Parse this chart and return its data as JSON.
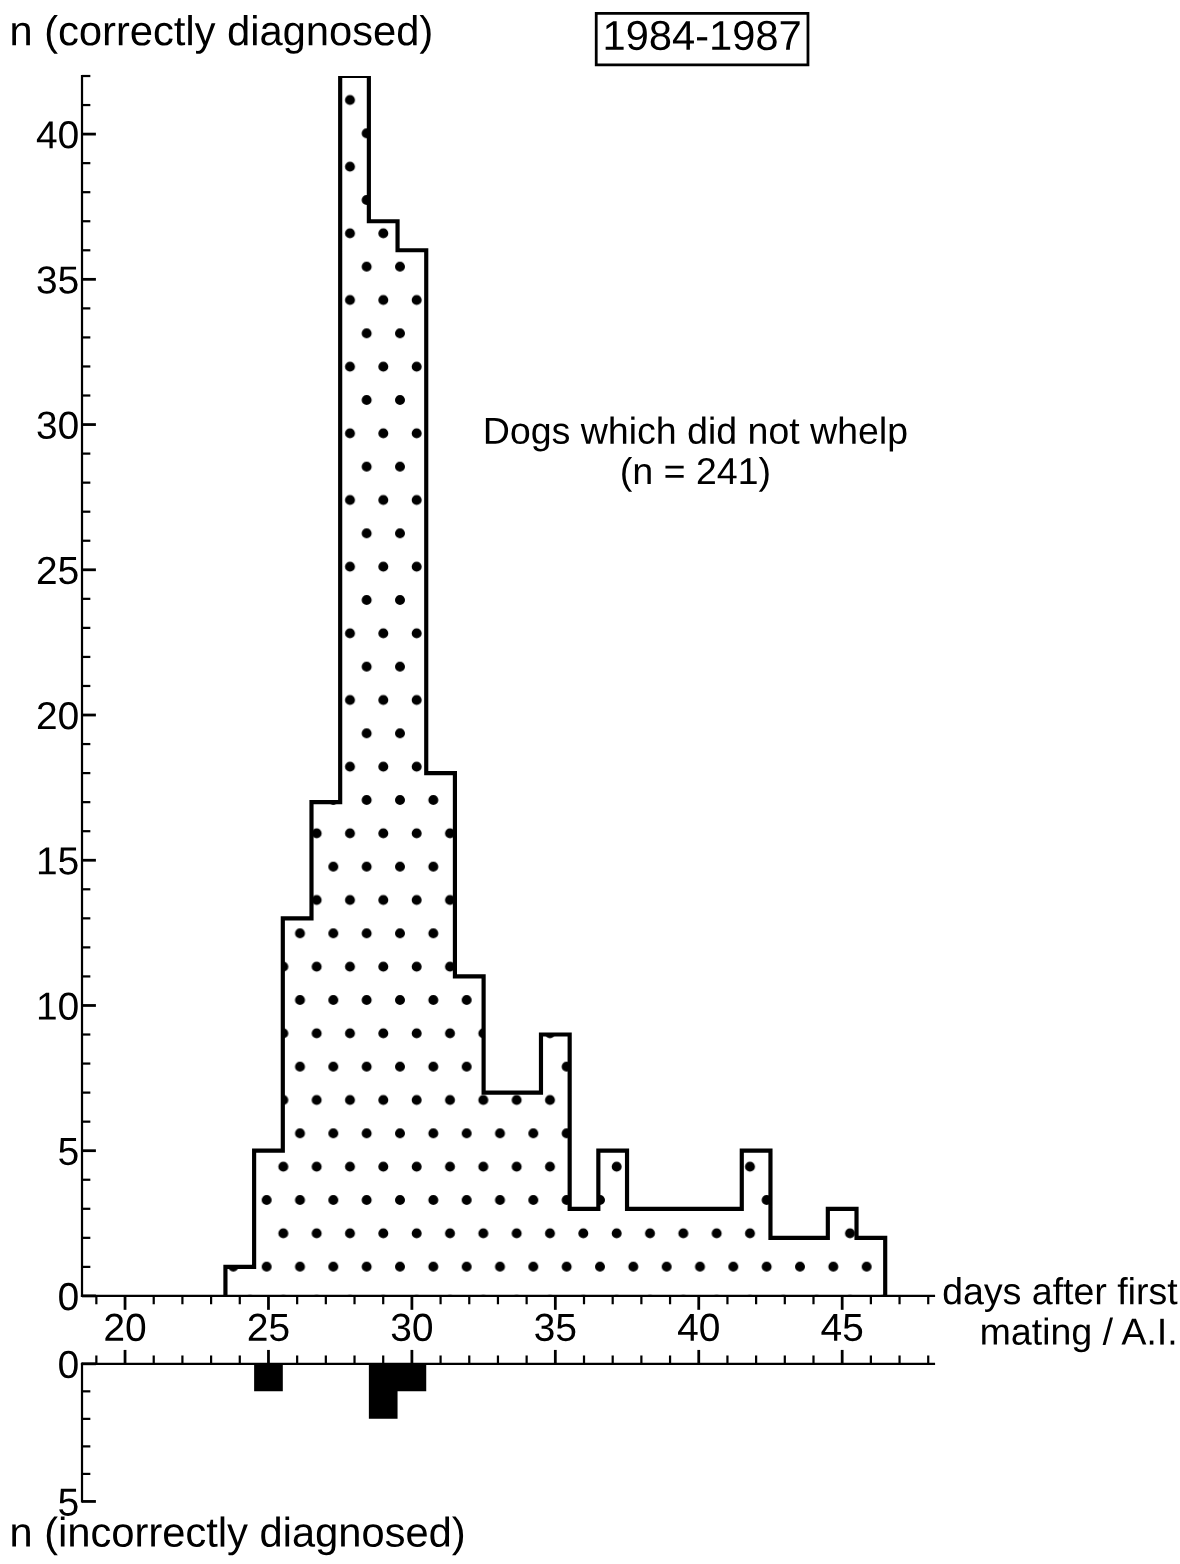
{
  "chart_data": [
    {
      "type": "histogram",
      "title": "1984-1987",
      "ylabel": "n (correctly diagnosed)",
      "xlabel": "days after first\nmating / A.I.",
      "annotations": [
        "Dogs which did not whelp\n(n = 241)"
      ],
      "bins": [
        23.5,
        24.5,
        25.5,
        26.5,
        27.5,
        28.5,
        29.5,
        30.5,
        31.5,
        32.5,
        33.5,
        34.5,
        35.5,
        36.5,
        37.5,
        38.5,
        39.5,
        40.5,
        41.5,
        42.5,
        43.5,
        44.5,
        45.5,
        46.5
      ],
      "values": [
        1,
        5,
        13,
        17,
        42,
        37,
        36,
        18,
        11,
        7,
        7,
        9,
        3,
        5,
        3,
        3,
        3,
        3,
        5,
        2,
        2,
        3,
        2
      ],
      "color": "#ffffff",
      "xlim": [
        18.5,
        48.2
      ],
      "xticks": [
        20,
        25,
        30,
        35,
        40,
        45
      ],
      "ylim": [
        0,
        42
      ],
      "yticks": [
        0,
        5,
        10,
        15,
        20,
        25,
        30,
        35,
        40
      ],
      "grid": false,
      "legend": false
    },
    {
      "type": "histogram",
      "ylabel": "n (incorrectly diagnosed)",
      "bins": [
        24.5,
        25.5,
        26.5,
        27.5,
        28.5,
        29.5,
        30.5
      ],
      "values": [
        1,
        0,
        0,
        0,
        2,
        1
      ],
      "color": "#000000",
      "xlim": [
        18.5,
        48.2
      ],
      "xticks": [
        20,
        25,
        30,
        35,
        40,
        45
      ],
      "ylim": [
        5,
        0
      ],
      "yticks": [
        0,
        5
      ],
      "tick_labels": "y",
      "grid": false,
      "legend": false
    }
  ]
}
